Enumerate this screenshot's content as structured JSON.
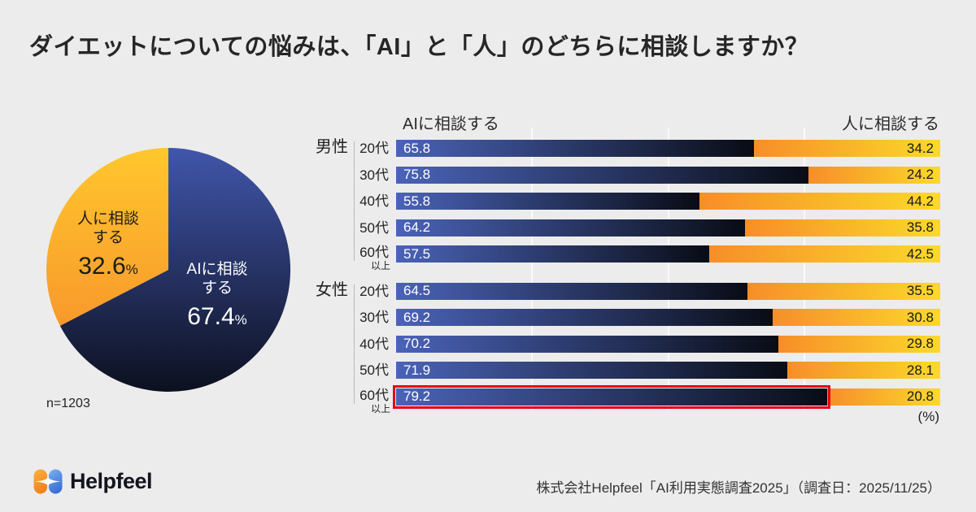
{
  "title": "ダイエットについての悩みは、「AI」と「人」のどちらに相談しますか？",
  "colors": {
    "background": "#ececec",
    "pie_blue_top": "#4156ab",
    "pie_blue_bottom": "#0c101f",
    "pie_yellow_top": "#ffc72d",
    "pie_yellow_bottom": "#f8992b",
    "bar_blue_start": "#4a63b8",
    "bar_blue_end": "#090c15",
    "bar_orange_start": "#f78e29",
    "bar_orange_end": "#fbd92b",
    "highlight_red": "#e60014",
    "gridline": "rgba(255,255,255,0.75)",
    "logo_orange_top": "#ffb23e",
    "logo_orange_bottom": "#f0821e",
    "logo_blue_top": "#7ab3ee",
    "logo_blue_bottom": "#3c6fd6"
  },
  "pie": {
    "human_label_lines": [
      "人に相談",
      "する"
    ],
    "human_value": "32.6",
    "ai_label_lines": [
      "AIに相談",
      "する"
    ],
    "ai_value": "67.4",
    "percent_sign": "%",
    "sample_size": "n=1203"
  },
  "bars": {
    "left_header": "AIに相談する",
    "right_header": "人に相談する",
    "unit": "(%)",
    "groups": [
      {
        "label": "男性",
        "rows": [
          {
            "age": "20代",
            "ai": 65.8,
            "human": 34.2
          },
          {
            "age": "30代",
            "ai": 75.8,
            "human": 24.2
          },
          {
            "age": "40代",
            "ai": 55.8,
            "human": 44.2
          },
          {
            "age": "50代",
            "ai": 64.2,
            "human": 35.8
          },
          {
            "age": "60代",
            "age2": "以上",
            "ai": 57.5,
            "human": 42.5
          }
        ]
      },
      {
        "label": "女性",
        "rows": [
          {
            "age": "20代",
            "ai": 64.5,
            "human": 35.5
          },
          {
            "age": "30代",
            "ai": 69.2,
            "human": 30.8
          },
          {
            "age": "40代",
            "ai": 70.2,
            "human": 29.8
          },
          {
            "age": "50代",
            "ai": 71.9,
            "human": 28.1
          },
          {
            "age": "60代",
            "age2": "以上",
            "ai": 79.2,
            "human": 20.8,
            "highlight": true
          }
        ]
      }
    ]
  },
  "footer": {
    "logo_text": "Helpfeel",
    "source": "株式会社Helpfeel「AI利用実態調査2025」（調査日：2025/11/25）"
  },
  "chart_data": [
    {
      "type": "pie",
      "title": "ダイエットについての悩みは、「AI」と「人」のどちらに相談しますか？",
      "labels": [
        "AIに相談する",
        "人に相談する"
      ],
      "values": [
        67.4,
        32.6
      ],
      "unit": "%",
      "note": "n=1203",
      "start_angle_deg": 0,
      "direction": "clockwise",
      "colors": [
        "navy-blue gradient",
        "yellow-orange gradient"
      ]
    },
    {
      "type": "bar",
      "orientation": "horizontal",
      "stacked": true,
      "unit": "%",
      "xlim": [
        0,
        100
      ],
      "gridlines_pct": [
        25,
        50,
        75
      ],
      "left_header": "AIに相談する",
      "right_header": "人に相談する",
      "categories": [
        "男性 20代",
        "男性 30代",
        "男性 40代",
        "男性 50代",
        "男性 60代以上",
        "女性 20代",
        "女性 30代",
        "女性 40代",
        "女性 50代",
        "女性 60代以上"
      ],
      "series": [
        {
          "name": "AIに相談する",
          "values": [
            65.8,
            75.8,
            55.8,
            64.2,
            57.5,
            64.5,
            69.2,
            70.2,
            71.9,
            79.2
          ]
        },
        {
          "name": "人に相談する",
          "values": [
            34.2,
            24.2,
            44.2,
            35.8,
            42.5,
            35.5,
            30.8,
            29.8,
            28.1,
            20.8
          ]
        }
      ],
      "highlight": "女性 60代以上"
    }
  ]
}
